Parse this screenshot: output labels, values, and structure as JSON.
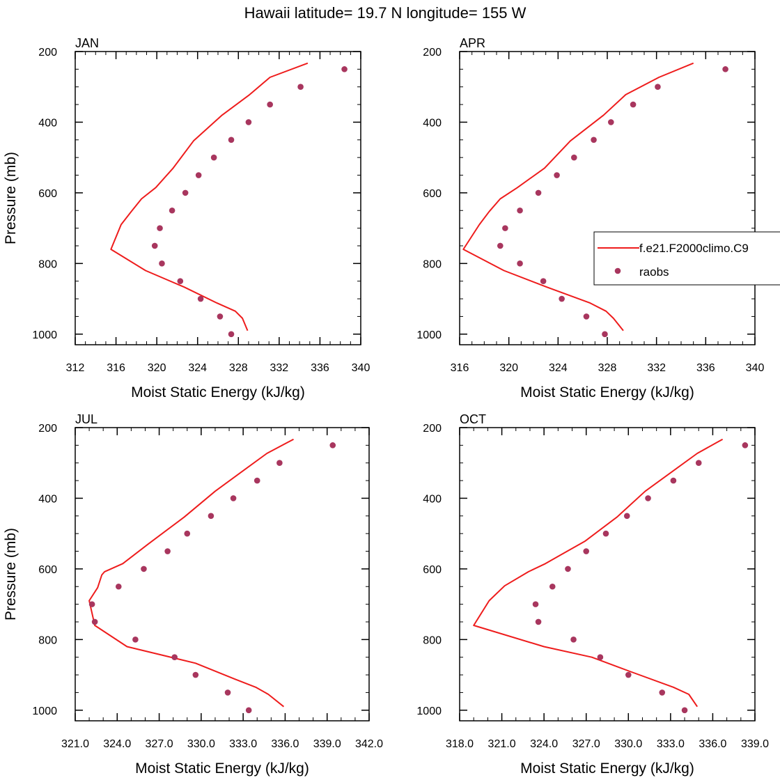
{
  "title": "Hawaii  latitude= 19.7 N longitude= 155 W",
  "colors": {
    "model": "#ee1c1c",
    "obs": "#a8365e"
  },
  "legend": {
    "entries": [
      "f.e21.F2000climo.C9",
      "raobs"
    ],
    "placement": "right of APR panel"
  },
  "chart_data": [
    {
      "type": "line",
      "panel": "JAN",
      "xlabel": "Moist Static Energy (kJ/kg)",
      "ylabel": "Pressure (mb)",
      "xlim": [
        312,
        340
      ],
      "ylim": [
        1030,
        200
      ],
      "y_reversed": true,
      "xticks": [
        312,
        316,
        320,
        324,
        328,
        332,
        336,
        340
      ],
      "xtick_labels": [
        "312",
        "316",
        "320",
        "324",
        "328",
        "332",
        "336",
        "340"
      ],
      "yticks": [
        200,
        400,
        600,
        800,
        1000
      ],
      "ytick_labels": [
        "200",
        "400",
        "600",
        "800",
        "1000"
      ],
      "series": [
        {
          "name": "f.e21.F2000climo.C9",
          "kind": "line",
          "x": [
            334.8,
            331.1,
            329.1,
            326.4,
            323.6,
            321.6,
            319.9,
            318.5,
            317.5,
            316.5,
            315.5,
            318.9,
            322.7,
            325.9,
            327.7,
            328.4,
            328.9
          ],
          "y": [
            233,
            273,
            322,
            380,
            453,
            530,
            585,
            617,
            653,
            690,
            760,
            820,
            867,
            912,
            935,
            955,
            990
          ]
        },
        {
          "name": "raobs",
          "kind": "scatter",
          "x": [
            338.4,
            334.1,
            331.1,
            329.0,
            327.3,
            325.6,
            324.1,
            322.8,
            321.5,
            320.3,
            319.8,
            320.5,
            322.3,
            324.3,
            326.2,
            327.3
          ],
          "y": [
            250,
            300,
            350,
            400,
            450,
            500,
            550,
            600,
            650,
            700,
            750,
            800,
            850,
            900,
            950,
            1000
          ]
        }
      ]
    },
    {
      "type": "line",
      "panel": "APR",
      "xlabel": "Moist Static Energy (kJ/kg)",
      "ylabel": "",
      "xlim": [
        316,
        340
      ],
      "ylim": [
        1030,
        200
      ],
      "y_reversed": true,
      "xticks": [
        316,
        320,
        324,
        328,
        332,
        336,
        340
      ],
      "xtick_labels": [
        "316",
        "320",
        "324",
        "328",
        "332",
        "336",
        "340"
      ],
      "yticks": [
        200,
        400,
        600,
        800,
        1000
      ],
      "ytick_labels": [
        "200",
        "400",
        "600",
        "800",
        "1000"
      ],
      "series": [
        {
          "name": "f.e21.F2000climo.C9",
          "kind": "line",
          "x": [
            335.0,
            332.2,
            329.5,
            327.7,
            325.0,
            322.9,
            320.7,
            319.3,
            318.4,
            317.6,
            316.3,
            319.6,
            323.1,
            326.6,
            327.9,
            328.5,
            329.3
          ],
          "y": [
            233,
            273,
            322,
            380,
            453,
            530,
            585,
            617,
            653,
            690,
            760,
            820,
            867,
            912,
            935,
            955,
            990
          ]
        },
        {
          "name": "raobs",
          "kind": "scatter",
          "x": [
            337.6,
            332.1,
            330.1,
            328.3,
            326.9,
            325.3,
            323.9,
            322.4,
            320.9,
            319.7,
            319.3,
            320.9,
            322.8,
            324.3,
            326.3,
            327.8
          ],
          "y": [
            250,
            300,
            350,
            400,
            450,
            500,
            550,
            600,
            650,
            700,
            750,
            800,
            850,
            900,
            950,
            1000
          ]
        }
      ]
    },
    {
      "type": "line",
      "panel": "JUL",
      "xlabel": "Moist Static Energy (kJ/kg)",
      "ylabel": "Pressure (mb)",
      "xlim": [
        321,
        342
      ],
      "ylim": [
        1030,
        200
      ],
      "y_reversed": true,
      "xticks": [
        321,
        324,
        327,
        330,
        333,
        336,
        339,
        342
      ],
      "xtick_labels": [
        "321.0",
        "324.0",
        "327.0",
        "330.0",
        "333.0",
        "336.0",
        "339.0",
        "342.0"
      ],
      "yticks": [
        200,
        400,
        600,
        800,
        1000
      ],
      "ytick_labels": [
        "200",
        "400",
        "600",
        "800",
        "1000"
      ],
      "series": [
        {
          "name": "f.e21.F2000climo.C9",
          "kind": "line",
          "x": [
            336.6,
            334.7,
            333.0,
            331.0,
            328.8,
            326.2,
            324.4,
            323.1,
            322.9,
            322.6,
            322.0,
            322.4,
            324.7,
            329.6,
            332.4,
            333.9,
            334.8,
            335.9
          ],
          "y": [
            233,
            273,
            322,
            380,
            453,
            530,
            585,
            608,
            617,
            653,
            690,
            760,
            820,
            867,
            912,
            935,
            955,
            990
          ]
        },
        {
          "name": "raobs",
          "kind": "scatter",
          "x": [
            339.4,
            335.6,
            334.0,
            332.3,
            330.7,
            329.0,
            327.6,
            325.9,
            324.1,
            322.2,
            322.4,
            325.3,
            328.1,
            329.6,
            331.9,
            333.4
          ],
          "y": [
            250,
            300,
            350,
            400,
            450,
            500,
            550,
            600,
            650,
            700,
            750,
            800,
            850,
            900,
            950,
            1000
          ]
        }
      ]
    },
    {
      "type": "line",
      "panel": "OCT",
      "xlabel": "Moist Static Energy (kJ/kg)",
      "ylabel": "",
      "xlim": [
        318,
        339
      ],
      "ylim": [
        1030,
        200
      ],
      "y_reversed": true,
      "xticks": [
        318,
        321,
        324,
        327,
        330,
        333,
        336,
        339
      ],
      "xtick_labels": [
        "318.0",
        "321.0",
        "324.0",
        "327.0",
        "330.0",
        "333.0",
        "336.0",
        "339.0"
      ],
      "yticks": [
        200,
        400,
        600,
        800,
        1000
      ],
      "ytick_labels": [
        "200",
        "400",
        "600",
        "800",
        "1000"
      ],
      "series": [
        {
          "name": "f.e21.F2000climo.C9",
          "kind": "line",
          "x": [
            336.7,
            334.9,
            333.2,
            331.2,
            329.2,
            326.9,
            325.2,
            324.1,
            322.9,
            321.2,
            320.1,
            319.0,
            324.0,
            327.4,
            330.1,
            333.2,
            334.3,
            334.9
          ],
          "y": [
            233,
            273,
            322,
            380,
            453,
            522,
            560,
            585,
            608,
            648,
            690,
            760,
            820,
            850,
            890,
            935,
            955,
            990
          ]
        },
        {
          "name": "raobs",
          "kind": "scatter",
          "x": [
            338.3,
            335.0,
            333.2,
            331.4,
            329.9,
            328.4,
            327.0,
            325.7,
            324.6,
            323.4,
            323.6,
            326.1,
            328.0,
            330.0,
            332.4,
            334.0
          ],
          "y": [
            250,
            300,
            350,
            400,
            450,
            500,
            550,
            600,
            650,
            700,
            750,
            800,
            850,
            900,
            950,
            1000
          ]
        }
      ]
    }
  ]
}
